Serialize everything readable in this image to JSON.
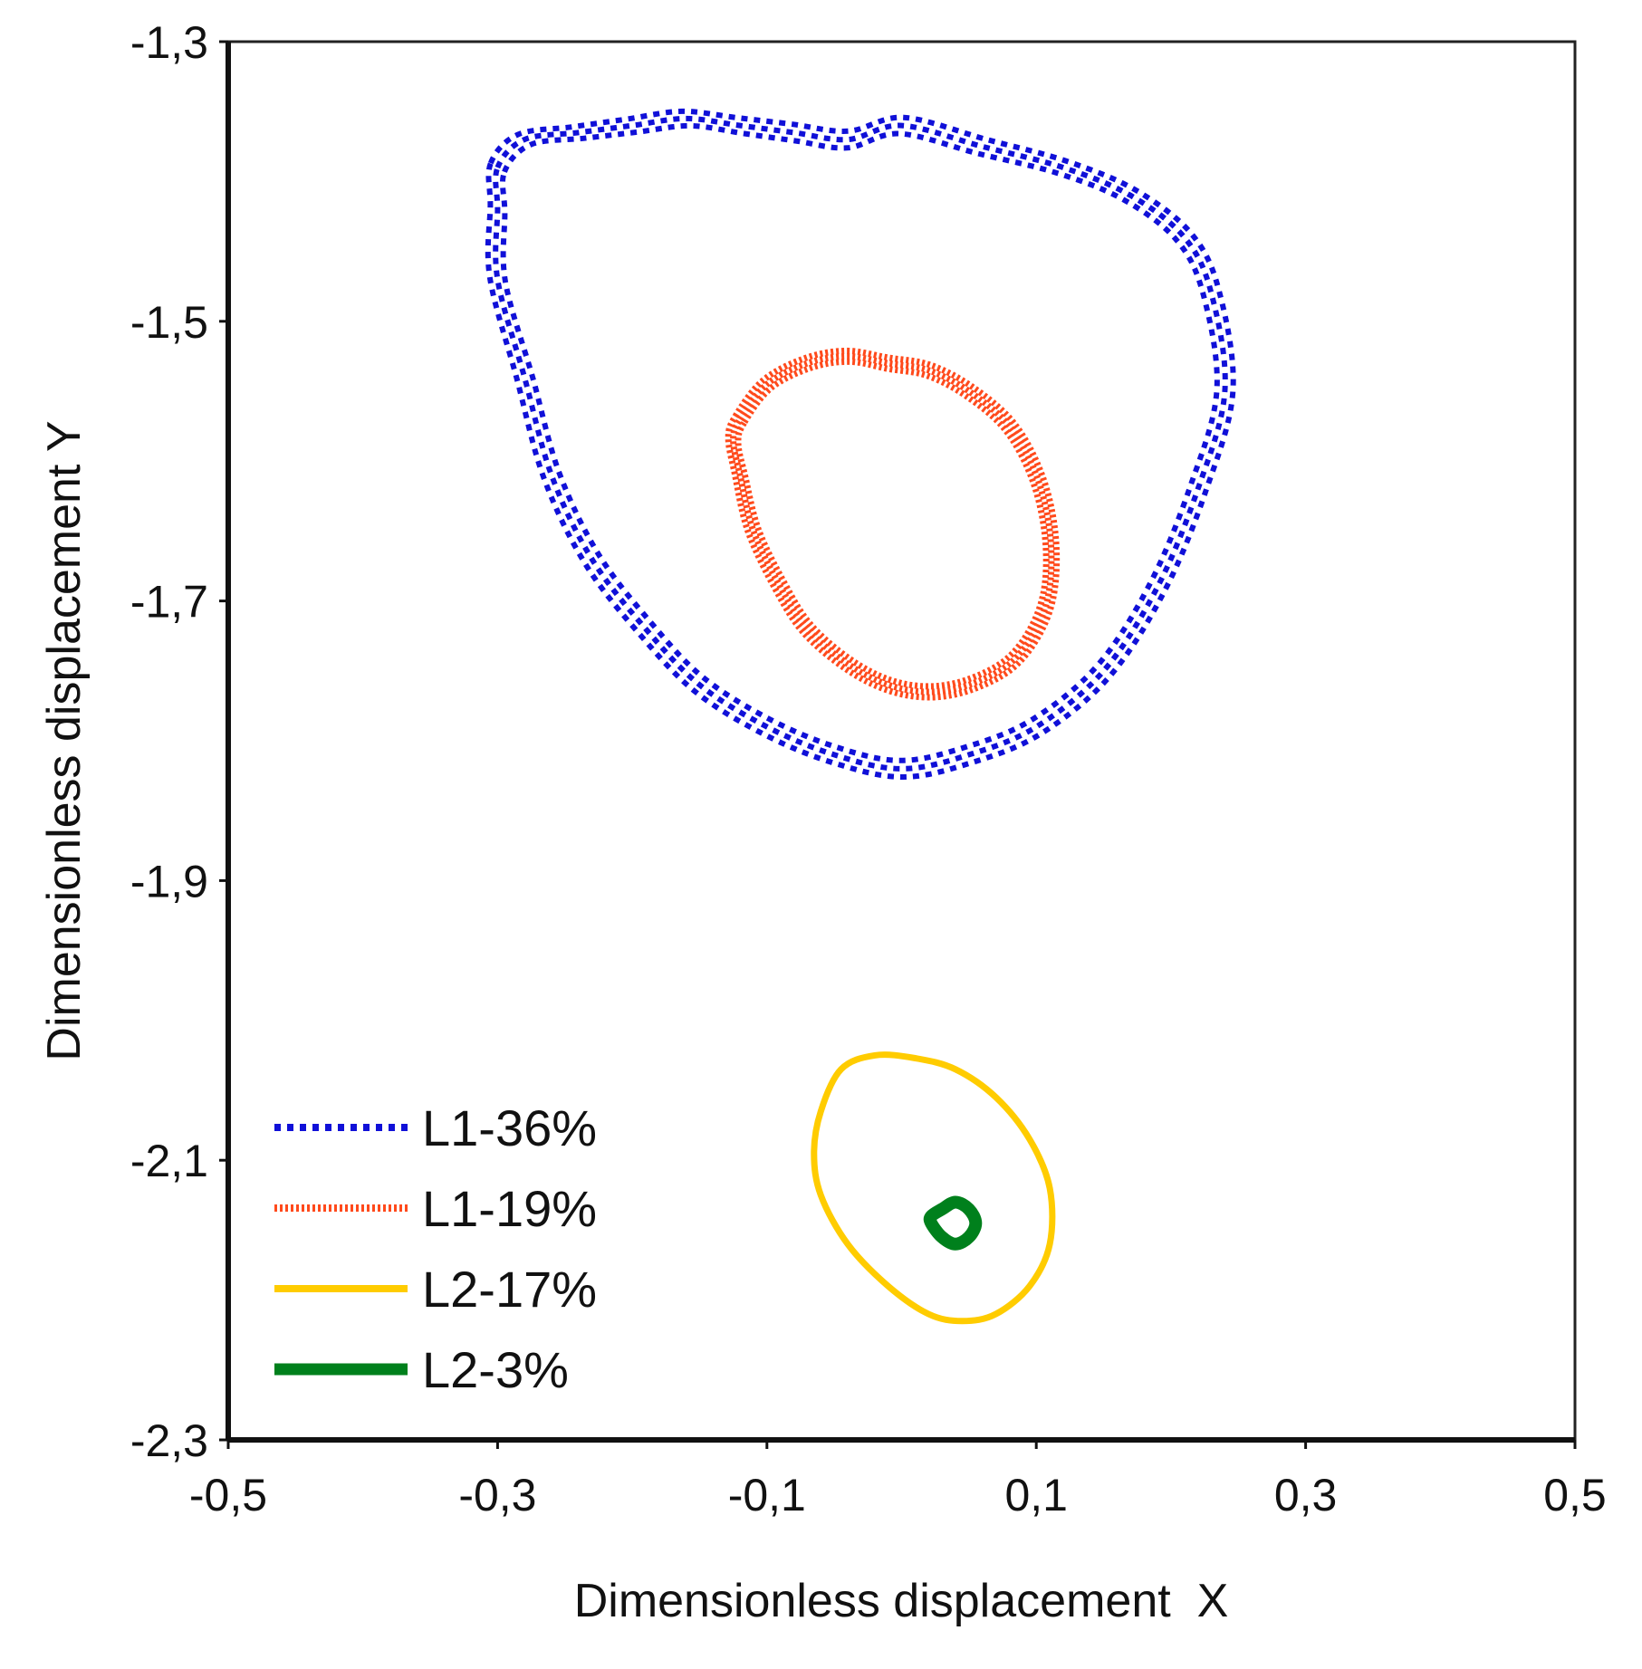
{
  "chart_data": {
    "type": "line",
    "subtype": "phase-trajectory",
    "title": "",
    "xlabel": "Dimensionless displacement  X",
    "ylabel": "Dimensionless displacement Y",
    "xlim": [
      -0.5,
      0.5
    ],
    "ylim": [
      -2.3,
      -1.3
    ],
    "xticks": [
      -0.5,
      -0.3,
      -0.1,
      0.1,
      0.3,
      0.5
    ],
    "xtick_labels": [
      "-0,5",
      "-0,3",
      "-0,1",
      "0,1",
      "0,3",
      "0,5"
    ],
    "yticks": [
      -1.3,
      -1.5,
      -1.7,
      -1.9,
      -2.1,
      -2.3
    ],
    "ytick_labels": [
      "-1,3",
      "-1,5",
      "-1,7",
      "-1,9",
      "-2,1",
      "-2,3"
    ],
    "grid": false,
    "legend_position": "bottom-left",
    "series": [
      {
        "name": "L1-36%",
        "color": "#1010d8",
        "style": "dotted",
        "x": [
          -0.3,
          -0.28,
          -0.24,
          -0.2,
          -0.16,
          -0.12,
          -0.08,
          -0.04,
          0.0,
          0.06,
          0.12,
          0.17,
          0.21,
          0.23,
          0.24,
          0.22,
          0.19,
          0.15,
          0.1,
          0.05,
          0.0,
          -0.05,
          -0.1,
          -0.15,
          -0.19,
          -0.23,
          -0.26,
          -0.28,
          -0.3,
          -0.3
        ],
        "y": [
          -1.39,
          -1.37,
          -1.365,
          -1.36,
          -1.355,
          -1.36,
          -1.365,
          -1.37,
          -1.36,
          -1.375,
          -1.39,
          -1.41,
          -1.44,
          -1.48,
          -1.55,
          -1.62,
          -1.69,
          -1.75,
          -1.79,
          -1.81,
          -1.82,
          -1.81,
          -1.79,
          -1.76,
          -1.72,
          -1.67,
          -1.61,
          -1.54,
          -1.47,
          -1.42
        ],
        "offsets": [
          -0.006,
          0.0,
          0.006
        ]
      },
      {
        "name": "L1-19%",
        "color": "#ff4a1c",
        "style": "dense-dotted",
        "x": [
          -0.12,
          -0.1,
          -0.07,
          -0.04,
          -0.01,
          0.02,
          0.05,
          0.08,
          0.1,
          0.11,
          0.11,
          0.1,
          0.08,
          0.05,
          0.02,
          -0.01,
          -0.04,
          -0.07,
          -0.09,
          -0.11,
          -0.12,
          -0.125
        ],
        "y": [
          -1.57,
          -1.545,
          -1.53,
          -1.525,
          -1.53,
          -1.535,
          -1.55,
          -1.575,
          -1.61,
          -1.65,
          -1.69,
          -1.72,
          -1.745,
          -1.76,
          -1.765,
          -1.76,
          -1.745,
          -1.72,
          -1.69,
          -1.65,
          -1.61,
          -1.585
        ],
        "offsets": [
          -0.004,
          0.0,
          0.004
        ]
      },
      {
        "name": "L2-17%",
        "color": "#ffcc00",
        "style": "solid",
        "x": [
          -0.06,
          -0.045,
          -0.02,
          0.01,
          0.04,
          0.07,
          0.095,
          0.11,
          0.11,
          0.095,
          0.07,
          0.045,
          0.02,
          -0.01,
          -0.04,
          -0.06,
          -0.065
        ],
        "y": [
          -2.065,
          -2.035,
          -2.025,
          -2.027,
          -2.035,
          -2.055,
          -2.085,
          -2.12,
          -2.16,
          -2.19,
          -2.21,
          -2.215,
          -2.21,
          -2.19,
          -2.16,
          -2.125,
          -2.095
        ],
        "offsets": [
          0.0
        ]
      },
      {
        "name": "L2-3%",
        "color": "#00801c",
        "style": "thick-solid",
        "x": [
          0.03,
          0.04,
          0.05,
          0.055,
          0.05,
          0.04,
          0.03,
          0.022,
          0.022
        ],
        "y": [
          -2.135,
          -2.13,
          -2.135,
          -2.145,
          -2.155,
          -2.16,
          -2.155,
          -2.145,
          -2.14
        ],
        "offsets": [
          0.0
        ]
      }
    ]
  }
}
